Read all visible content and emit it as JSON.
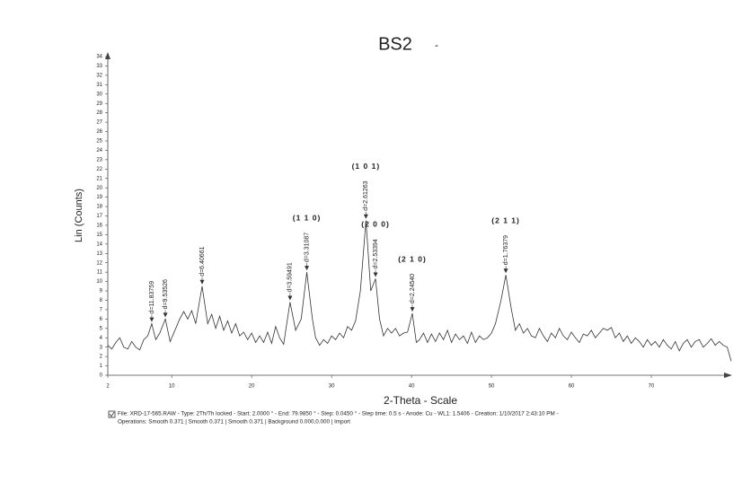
{
  "chart_data": {
    "type": "line",
    "title": "BS2",
    "title_suffix": "-",
    "y_label": "Lin (Counts)",
    "x_label": "2-Theta - Scale",
    "footer": [
      "File: XRD-17-565.RAW - Type: 2Th/Th locked - Start: 2.0000 ° - End: 79.9850 ° - Step: 0.0450 ° - Step time: 0.5 s - Anode: Cu - WL1: 1.5406 - Creation: 1/10/2017 2:43:10 PM -",
      "Operations: Smooth 0.371 | Smooth 0.371 | Smooth 0.371 | Background 0.000,0.000 | Import"
    ],
    "color": "#333333",
    "xlim": [
      2,
      80
    ],
    "ylim": [
      0,
      34
    ],
    "xticks": [
      2,
      10,
      20,
      30,
      40,
      50,
      60,
      70
    ],
    "yticks": [
      0,
      1,
      2,
      3,
      4,
      5,
      6,
      7,
      8,
      9,
      10,
      11,
      12,
      13,
      14,
      15,
      16,
      17,
      18,
      19,
      20,
      21,
      22,
      23,
      24,
      25,
      26,
      27,
      28,
      29,
      30,
      31,
      32,
      33,
      34
    ],
    "x": [
      2,
      2.5,
      3,
      3.5,
      4,
      4.5,
      5,
      5.5,
      6,
      6.5,
      7,
      7.5,
      8,
      8.5,
      9.2,
      9.8,
      10.5,
      11,
      11.5,
      12,
      12.5,
      13,
      13.8,
      14.5,
      15,
      15.5,
      16,
      16.5,
      17,
      17.5,
      18,
      18.5,
      19,
      19.5,
      20,
      20.5,
      21,
      21.5,
      22,
      22.5,
      23,
      23.5,
      24,
      24.8,
      25.5,
      26.2,
      26.9,
      27.6,
      28,
      28.5,
      29,
      29.5,
      30,
      30.5,
      31,
      31.5,
      32,
      32.5,
      33,
      33.6,
      34.3,
      34.9,
      35.5,
      36,
      36.5,
      37,
      37.5,
      38,
      38.5,
      39,
      39.5,
      40.1,
      40.6,
      41,
      41.5,
      42,
      42.5,
      43,
      43.5,
      44,
      44.5,
      45,
      45.5,
      46,
      46.5,
      47,
      47.5,
      48,
      48.5,
      49,
      49.5,
      50,
      50.5,
      51.2,
      51.8,
      52.5,
      53,
      53.5,
      54,
      54.5,
      55,
      55.5,
      56,
      56.5,
      57,
      57.5,
      58,
      58.5,
      59,
      59.5,
      60,
      60.5,
      61,
      61.5,
      62,
      62.5,
      63,
      63.5,
      64,
      64.5,
      65,
      65.5,
      66,
      66.5,
      67,
      67.5,
      68,
      68.5,
      69,
      69.5,
      70,
      70.5,
      71,
      71.5,
      72,
      72.5,
      73,
      73.5,
      74,
      74.5,
      75,
      75.5,
      76,
      76.5,
      77,
      77.5,
      78,
      78.5,
      79,
      79.5,
      80
    ],
    "values": [
      3.2,
      2.8,
      3.5,
      4,
      3,
      2.8,
      3.6,
      3,
      2.7,
      3.8,
      4.2,
      5.5,
      3.8,
      4.5,
      6,
      3.6,
      5,
      6,
      6.8,
      6,
      6.9,
      5.5,
      9.5,
      5.5,
      6.5,
      5,
      6.3,
      4.8,
      5.8,
      4.5,
      5.5,
      4.2,
      4.6,
      3.8,
      4.5,
      3.5,
      4.2,
      3.5,
      4.6,
      3.4,
      5.2,
      4,
      3.3,
      7.8,
      4.8,
      6,
      11,
      6,
      4,
      3.2,
      3.8,
      3.4,
      4.2,
      3.8,
      4.5,
      4,
      5.2,
      4.8,
      5.8,
      9,
      16.5,
      9,
      10.3,
      6,
      4.2,
      5,
      4.5,
      5,
      4.2,
      4.5,
      4.6,
      6.6,
      3.5,
      3.8,
      4.5,
      3.5,
      4.4,
      3.6,
      4.5,
      3.8,
      4.8,
      3.5,
      4.4,
      3.8,
      4.2,
      3.4,
      4.6,
      3.5,
      4.2,
      3.8,
      4,
      4.5,
      5.5,
      8,
      10.7,
      7,
      4.8,
      5.5,
      4.5,
      5,
      4.2,
      4,
      5,
      4.2,
      3.6,
      4.5,
      4,
      5,
      4.2,
      3.8,
      4.6,
      4,
      3.5,
      4.4,
      4.2,
      4.8,
      4,
      4.5,
      5,
      4.8,
      5.1,
      4,
      4.5,
      3.6,
      4.2,
      3.4,
      4,
      3.6,
      3,
      3.8,
      3.2,
      3.6,
      3,
      3.8,
      3.2,
      2.8,
      3.6,
      2.6,
      3.4,
      3.8,
      3,
      3.6,
      3.8,
      3,
      3.4,
      3.9,
      3.2,
      3.6,
      3.2,
      3,
      1.5
    ],
    "annotations": [
      {
        "x": 7.5,
        "y": 5.5,
        "label": "d=11.83759"
      },
      {
        "x": 9.2,
        "y": 6,
        "label": "d=9.53526"
      },
      {
        "x": 13.8,
        "y": 9.5,
        "label": "d=6.40661"
      },
      {
        "x": 24.8,
        "y": 7.8,
        "label": "d=3.59491"
      },
      {
        "x": 26.9,
        "y": 11,
        "label": "d=3.31087",
        "hkl": "(1 1 0)"
      },
      {
        "x": 34.3,
        "y": 16.5,
        "label": "d=2.61263",
        "hkl": "(1 0 1)"
      },
      {
        "x": 35.5,
        "y": 10.3,
        "label": "d=2.53394",
        "hkl": "(2 0 0)"
      },
      {
        "x": 40.1,
        "y": 6.6,
        "label": "d=2.24540",
        "hkl": "(2 1 0)"
      },
      {
        "x": 51.8,
        "y": 10.7,
        "label": "d=1.76379",
        "hkl": "(2 1 1)"
      }
    ]
  }
}
